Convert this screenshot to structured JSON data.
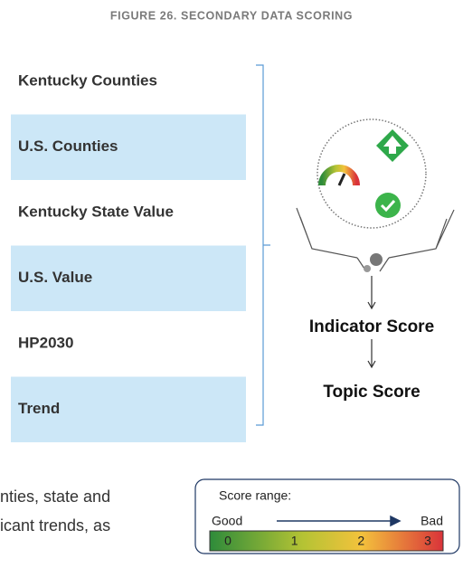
{
  "header": {
    "title": "FIGURE 26. SECONDARY DATA SCORING"
  },
  "rows": [
    {
      "label": "Kentucky Counties",
      "shaded": false
    },
    {
      "label": "U.S. Counties",
      "shaded": true
    },
    {
      "label": "Kentucky State Value",
      "shaded": false
    },
    {
      "label": "U.S. Value",
      "shaded": true
    },
    {
      "label": "HP2030",
      "shaded": false
    },
    {
      "label": "Trend",
      "shaded": true
    }
  ],
  "diagram": {
    "indicator_score": "Indicator Score",
    "topic_score": "Topic Score"
  },
  "body_lines": [
    "nties, state and",
    "icant trends, as"
  ],
  "legend": {
    "title": "Score range:",
    "good": "Good",
    "bad": "Bad",
    "scale": [
      0,
      1,
      2,
      3
    ]
  }
}
